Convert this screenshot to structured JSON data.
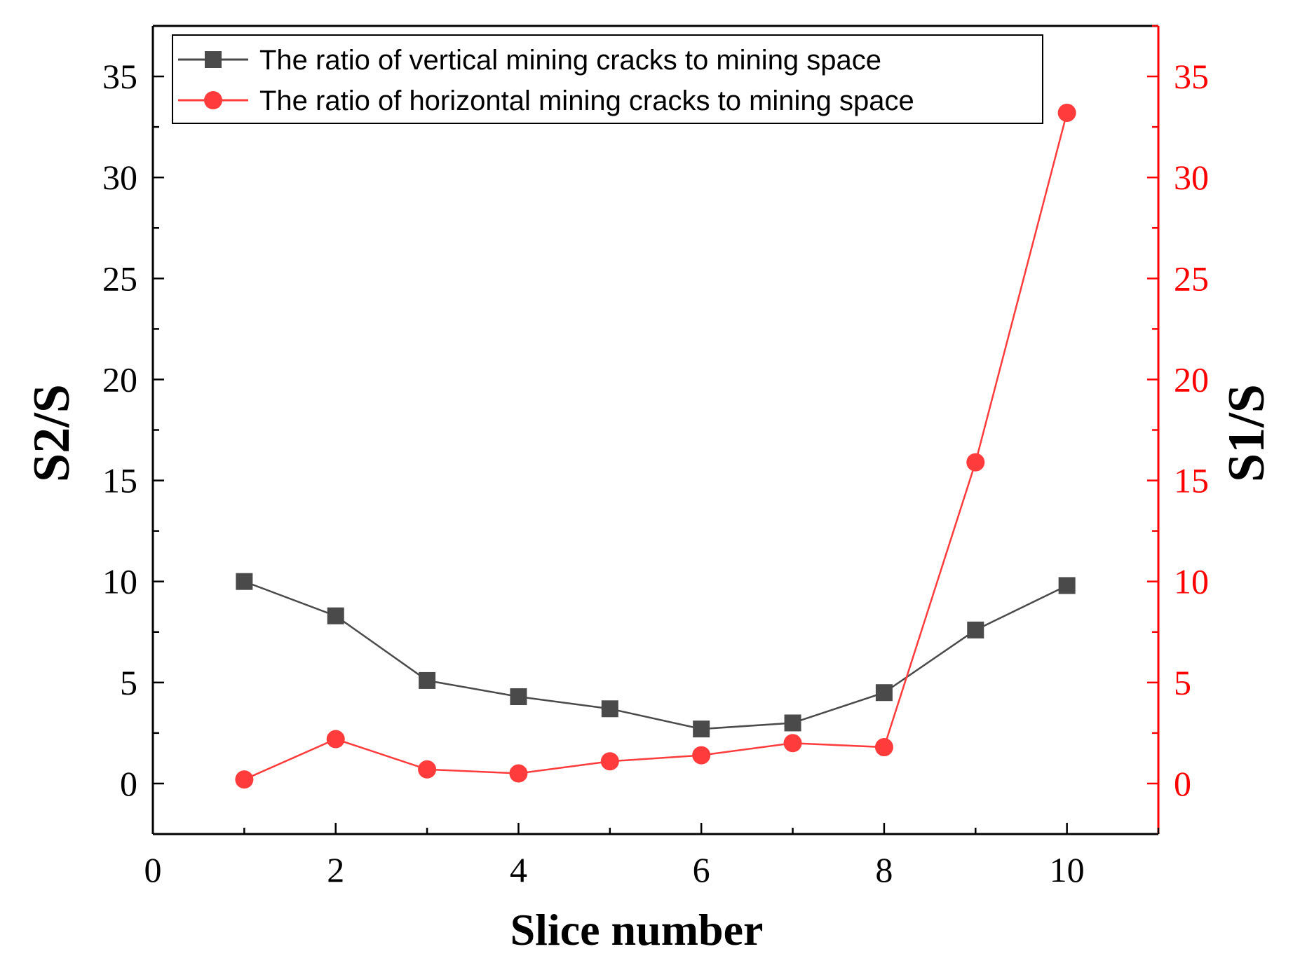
{
  "chart_data": {
    "type": "line",
    "title": "",
    "xlabel": "Slice number",
    "ylabel_left": "S2/S",
    "ylabel_right": "S1/S",
    "xlim": [
      0,
      11
    ],
    "ylim_left": [
      -2.5,
      37.5
    ],
    "ylim_right": [
      -2.5,
      37.5
    ],
    "x_ticks": [
      0,
      2,
      4,
      6,
      8,
      10
    ],
    "y_ticks_left": [
      0,
      5,
      10,
      15,
      20,
      25,
      30,
      35
    ],
    "y_ticks_right": [
      0,
      5,
      10,
      15,
      20,
      25,
      30,
      35
    ],
    "grid": false,
    "legend_position": "top",
    "colors": {
      "left_axis": "#000000",
      "right_axis": "#ff0000"
    },
    "series": [
      {
        "name": "The ratio of vertical mining cracks to mining space",
        "axis": "left",
        "marker": "square",
        "color": "#4a4a4a",
        "x": [
          1,
          2,
          3,
          4,
          5,
          6,
          7,
          8,
          9,
          10
        ],
        "values": [
          10.0,
          8.3,
          5.1,
          4.3,
          3.7,
          2.7,
          3.0,
          4.5,
          7.6,
          9.8
        ]
      },
      {
        "name": "The ratio of horizontal mining cracks to mining space",
        "axis": "right",
        "marker": "circle",
        "color": "#ff3b3b",
        "x": [
          1,
          2,
          3,
          4,
          5,
          6,
          7,
          8,
          9,
          10
        ],
        "values": [
          0.2,
          2.2,
          0.7,
          0.5,
          1.1,
          1.4,
          2.0,
          1.8,
          15.9,
          33.2
        ]
      }
    ]
  }
}
